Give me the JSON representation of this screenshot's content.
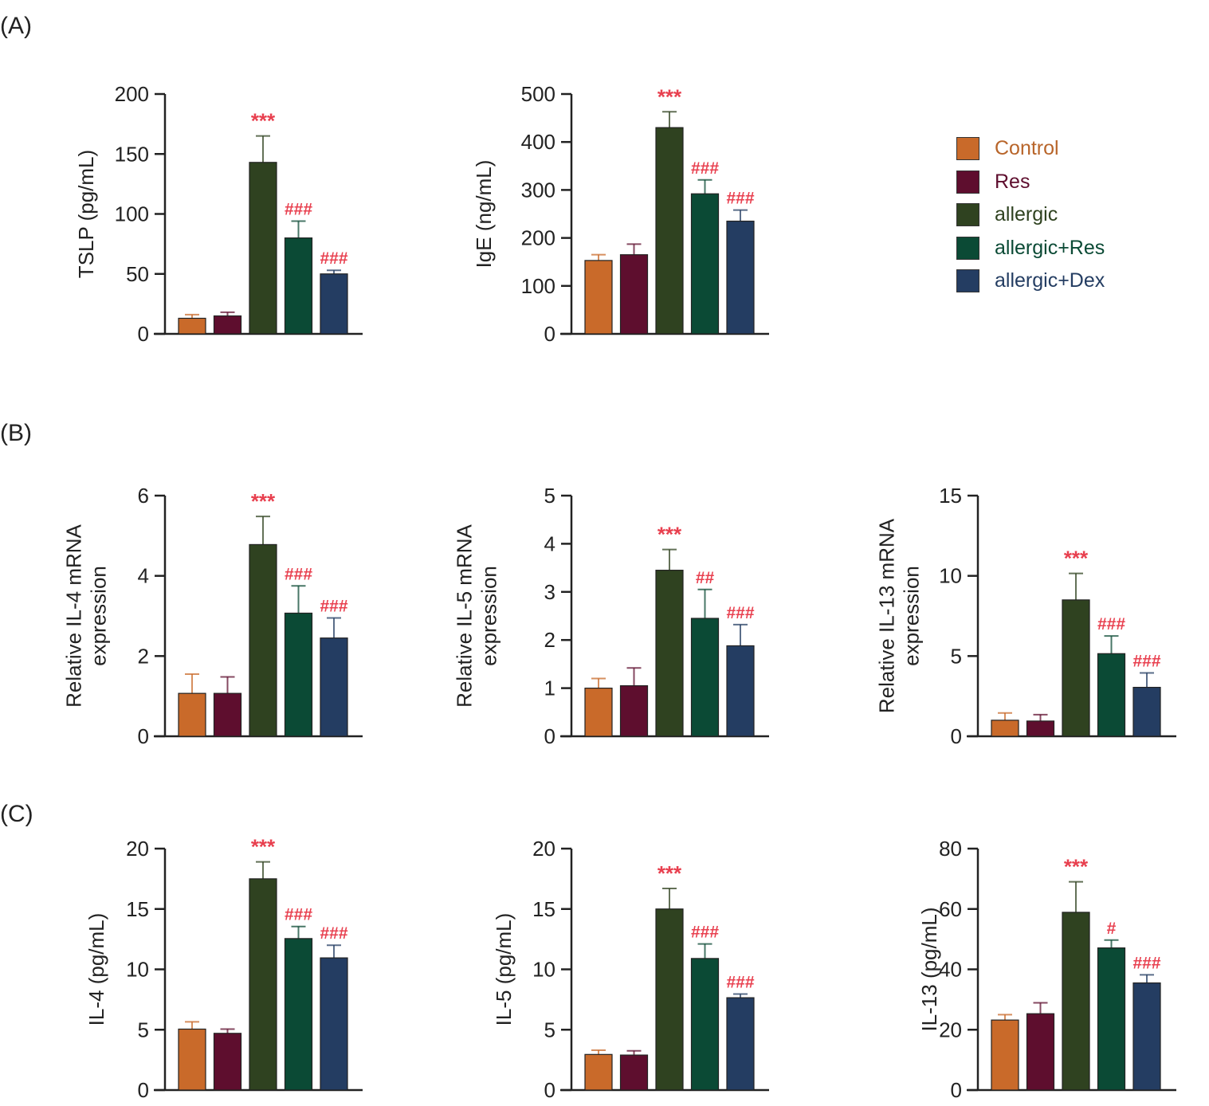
{
  "panels": [
    {
      "label": "(A)"
    },
    {
      "label": "(B)"
    },
    {
      "label": "(C)"
    }
  ],
  "legend": [
    {
      "name": "Control",
      "color": "#c96a2a",
      "text_color": "#b8652a"
    },
    {
      "name": "Res",
      "color": "#5e0e2e",
      "text_color": "#5e0e2e"
    },
    {
      "name": "allergic",
      "color": "#2f4220",
      "text_color": "#2f4220"
    },
    {
      "name": "allergic+Res",
      "color": "#0b4a35",
      "text_color": "#0b4a35"
    },
    {
      "name": "allergic+Dex",
      "color": "#243d62",
      "text_color": "#243d62"
    }
  ],
  "annotation_color": "#e8404f",
  "chart_data": [
    {
      "type": "bar",
      "panel": "A",
      "title": "",
      "ylabel": [
        "TSLP (pg/mL)"
      ],
      "xlabel": "",
      "ylim": [
        0,
        200
      ],
      "yticks": [
        0,
        50,
        100,
        150,
        200
      ],
      "categories": [
        "Control",
        "Res",
        "allergic",
        "allergic+Res",
        "allergic+Dex"
      ],
      "values": [
        13,
        15,
        143,
        80,
        50
      ],
      "error_upper": [
        16,
        18,
        165,
        94,
        53
      ],
      "annotations": [
        "",
        "",
        "***",
        "###",
        "###"
      ]
    },
    {
      "type": "bar",
      "panel": "A",
      "title": "",
      "ylabel": [
        "IgE (ng/mL)"
      ],
      "xlabel": "",
      "ylim": [
        0,
        500
      ],
      "yticks": [
        0,
        100,
        200,
        300,
        400,
        500
      ],
      "categories": [
        "Control",
        "Res",
        "allergic",
        "allergic+Res",
        "allergic+Dex"
      ],
      "values": [
        153,
        165,
        430,
        292,
        235
      ],
      "error_upper": [
        165,
        187,
        463,
        321,
        258
      ],
      "annotations": [
        "",
        "",
        "***",
        "###",
        "###"
      ]
    },
    {
      "type": "bar",
      "panel": "B",
      "title": "",
      "ylabel": [
        "Relative IL-4 mRNA",
        "expression"
      ],
      "xlabel": "",
      "ylim": [
        0,
        6
      ],
      "yticks": [
        0,
        2,
        4,
        6
      ],
      "categories": [
        "Control",
        "Res",
        "allergic",
        "allergic+Res",
        "allergic+Dex"
      ],
      "values": [
        1.07,
        1.07,
        4.78,
        3.07,
        2.45
      ],
      "error_upper": [
        1.55,
        1.48,
        5.48,
        3.75,
        2.95
      ],
      "annotations": [
        "",
        "",
        "***",
        "###",
        "###"
      ]
    },
    {
      "type": "bar",
      "panel": "B",
      "title": "",
      "ylabel": [
        "Relative IL-5 mRNA",
        "expression"
      ],
      "xlabel": "",
      "ylim": [
        0,
        5
      ],
      "yticks": [
        0,
        1,
        2,
        3,
        4,
        5
      ],
      "categories": [
        "Control",
        "Res",
        "allergic",
        "allergic+Res",
        "allergic+Dex"
      ],
      "values": [
        1.0,
        1.05,
        3.45,
        2.45,
        1.88
      ],
      "error_upper": [
        1.2,
        1.42,
        3.88,
        3.05,
        2.32
      ],
      "annotations": [
        "",
        "",
        "***",
        "##",
        "###"
      ]
    },
    {
      "type": "bar",
      "panel": "B",
      "title": "",
      "ylabel": [
        "Relative IL-13 mRNA",
        "expression"
      ],
      "xlabel": "",
      "ylim": [
        0,
        15
      ],
      "yticks": [
        0,
        5,
        10,
        15
      ],
      "categories": [
        "Control",
        "Res",
        "allergic",
        "allergic+Res",
        "allergic+Dex"
      ],
      "values": [
        1.0,
        0.95,
        8.5,
        5.15,
        3.05
      ],
      "error_upper": [
        1.45,
        1.35,
        10.15,
        6.25,
        3.95
      ],
      "annotations": [
        "",
        "",
        "***",
        "###",
        "###"
      ]
    },
    {
      "type": "bar",
      "panel": "C",
      "title": "",
      "ylabel": [
        "IL-4 (pg/mL)"
      ],
      "xlabel": "",
      "ylim": [
        0,
        20
      ],
      "yticks": [
        0,
        5,
        10,
        15,
        20
      ],
      "categories": [
        "Control",
        "Res",
        "allergic",
        "allergic+Res",
        "allergic+Dex"
      ],
      "values": [
        5.05,
        4.7,
        17.5,
        12.55,
        10.95
      ],
      "error_upper": [
        5.65,
        5.05,
        18.9,
        13.55,
        12.0
      ],
      "annotations": [
        "",
        "",
        "***",
        "###",
        "###"
      ]
    },
    {
      "type": "bar",
      "panel": "C",
      "title": "",
      "ylabel": [
        "IL-5 (pg/mL)"
      ],
      "xlabel": "",
      "ylim": [
        0,
        20
      ],
      "yticks": [
        0,
        5,
        10,
        15,
        20
      ],
      "categories": [
        "Control",
        "Res",
        "allergic",
        "allergic+Res",
        "allergic+Dex"
      ],
      "values": [
        2.95,
        2.9,
        15.0,
        10.9,
        7.65
      ],
      "error_upper": [
        3.3,
        3.25,
        16.7,
        12.1,
        7.95
      ],
      "annotations": [
        "",
        "",
        "***",
        "###",
        "###"
      ]
    },
    {
      "type": "bar",
      "panel": "C",
      "title": "",
      "ylabel": [
        "IL-13 (pg/mL)"
      ],
      "xlabel": "",
      "ylim": [
        0,
        80
      ],
      "yticks": [
        0,
        20,
        40,
        60,
        80
      ],
      "categories": [
        "Control",
        "Res",
        "allergic",
        "allergic+Res",
        "allergic+Dex"
      ],
      "values": [
        23.2,
        25.3,
        58.9,
        47.1,
        35.5
      ],
      "error_upper": [
        25.0,
        28.9,
        69.0,
        49.7,
        38.2
      ],
      "annotations": [
        "",
        "",
        "***",
        "#",
        "###"
      ]
    }
  ]
}
